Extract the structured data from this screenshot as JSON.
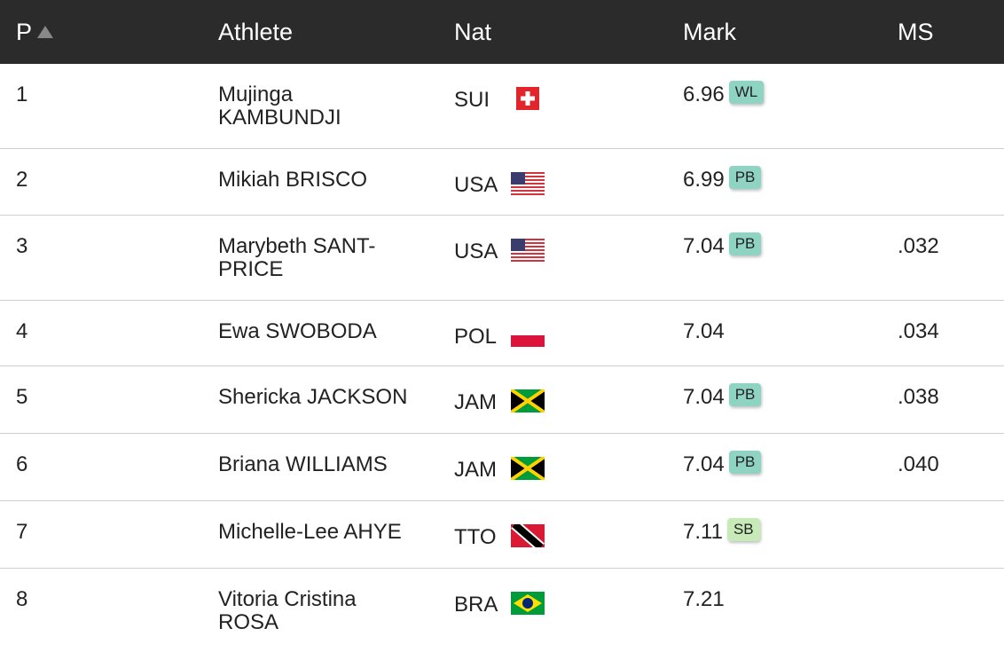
{
  "header": [
    "P",
    "Athlete",
    "Nat",
    "Mark",
    "MS"
  ],
  "rows": [
    {
      "pos": "1",
      "athlete": "Mujinga KAMBUNDJI",
      "nat": "SUI",
      "mark": "6.96",
      "badge": "WL"
    },
    {
      "pos": "2",
      "athlete": "Mikiah BRISCO",
      "nat": "USA",
      "mark": "6.99",
      "badge": "PB"
    },
    {
      "pos": "3",
      "athlete": "Marybeth SANT-PRICE",
      "nat": "USA",
      "mark": "7.04",
      "badge": "PB",
      "ms": ".032"
    },
    {
      "pos": "4",
      "athlete": "Ewa SWOBODA",
      "nat": "POL",
      "mark": "7.04",
      "ms": ".034"
    },
    {
      "pos": "5",
      "athlete": "Shericka JACKSON",
      "nat": "JAM",
      "mark": "7.04",
      "badge": "PB",
      "ms": ".038"
    },
    {
      "pos": "6",
      "athlete": "Briana WILLIAMS",
      "nat": "JAM",
      "mark": "7.04",
      "badge": "PB",
      "ms": ".040"
    },
    {
      "pos": "7",
      "athlete": "Michelle-Lee AHYE",
      "nat": "TTO",
      "mark": "7.11",
      "badge": "SB"
    },
    {
      "pos": "8",
      "athlete": "Vitoria Cristina ROSA",
      "nat": "BRA",
      "mark": "7.21"
    }
  ]
}
